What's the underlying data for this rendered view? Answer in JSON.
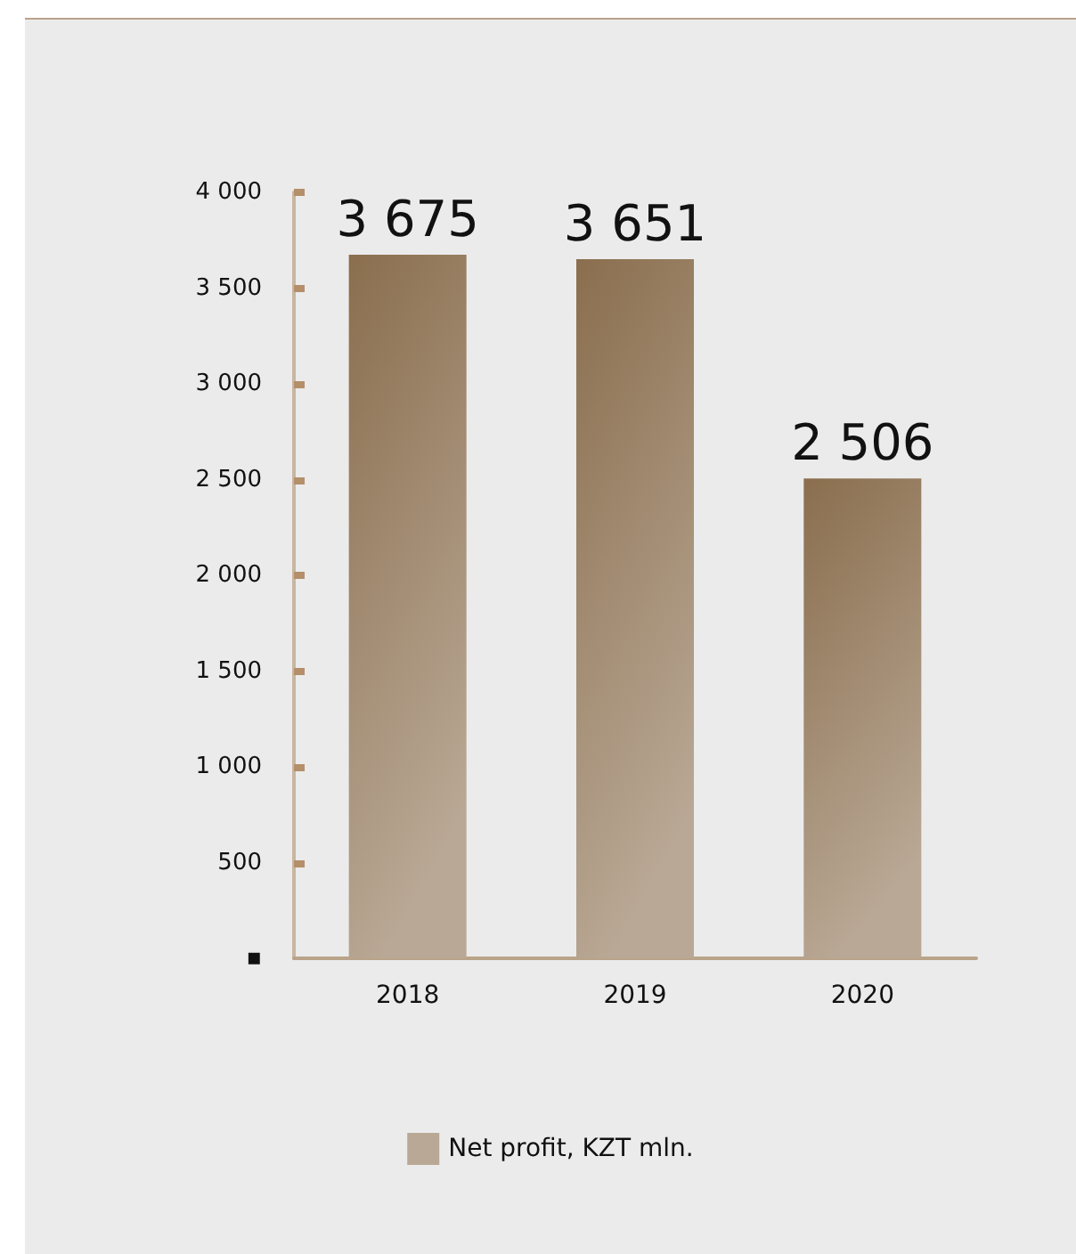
{
  "chart_data": {
    "type": "bar",
    "categories": [
      "2018",
      "2019",
      "2020"
    ],
    "series": [
      {
        "name": "Net profit, KZT mln.",
        "color": "#8a6e4e",
        "values": [
          3675,
          3651,
          2506
        ],
        "value_labels": [
          "3 675",
          "3 651",
          "2 506"
        ]
      }
    ],
    "ylim": [
      0,
      4000
    ],
    "yticks": [
      {
        "value": 0,
        "label": "▪"
      },
      {
        "value": 500,
        "label": "500"
      },
      {
        "value": 1000,
        "label": "1 000"
      },
      {
        "value": 1500,
        "label": "1 500"
      },
      {
        "value": 2000,
        "label": "2 000"
      },
      {
        "value": 2500,
        "label": "2 500"
      },
      {
        "value": 3000,
        "label": "3 000"
      },
      {
        "value": 3500,
        "label": "3 500"
      },
      {
        "value": 4000,
        "label": "4 000"
      }
    ],
    "grid": false,
    "legend": "bottom"
  }
}
